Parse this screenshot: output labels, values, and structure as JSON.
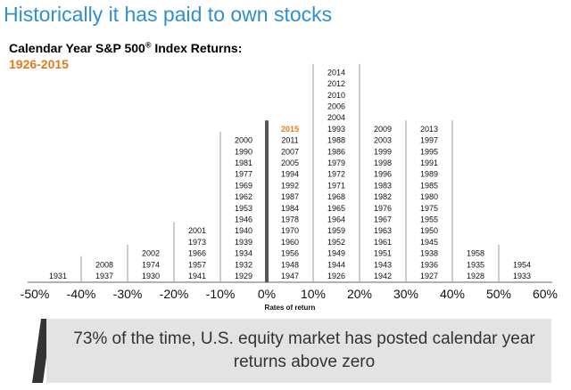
{
  "headline": "Historically it has paid to own stocks",
  "footer_text": "73% of the time, U.S. equity market has posted calendar year returns above zero",
  "chart_data": {
    "type": "histogram",
    "title": "Calendar Year S&P 500® Index Returns:",
    "subtitle": "1926-2015",
    "xlabel": "Rates of return",
    "ticks": [
      "-50%",
      "-40%",
      "-30%",
      "-20%",
      "-10%",
      "0%",
      "10%",
      "20%",
      "30%",
      "40%",
      "50%",
      "60%"
    ],
    "highlight_year": "2015",
    "highlight_color": "#e07b1a",
    "bins": [
      {
        "range": [
          -50,
          -40
        ],
        "years": [
          "1931"
        ]
      },
      {
        "range": [
          -40,
          -30
        ],
        "years": [
          "1937",
          "2008"
        ]
      },
      {
        "range": [
          -30,
          -20
        ],
        "years": [
          "1930",
          "1974",
          "2002"
        ]
      },
      {
        "range": [
          -20,
          -10
        ],
        "years": [
          "1941",
          "1957",
          "1966",
          "1973",
          "2001"
        ]
      },
      {
        "range": [
          -10,
          0
        ],
        "years": [
          "1929",
          "1932",
          "1934",
          "1939",
          "1940",
          "1946",
          "1953",
          "1962",
          "1969",
          "1977",
          "1981",
          "1990",
          "2000"
        ]
      },
      {
        "range": [
          0,
          10
        ],
        "years": [
          "1947",
          "1948",
          "1956",
          "1960",
          "1970",
          "1978",
          "1984",
          "1987",
          "1992",
          "1994",
          "2005",
          "2007",
          "2011",
          "2015"
        ]
      },
      {
        "range": [
          10,
          20
        ],
        "years": [
          "1926",
          "1944",
          "1949",
          "1952",
          "1959",
          "1964",
          "1965",
          "1968",
          "1971",
          "1972",
          "1979",
          "1986",
          "1988",
          "1993",
          "2004",
          "2006",
          "2010",
          "2012",
          "2014"
        ]
      },
      {
        "range": [
          20,
          30
        ],
        "years": [
          "1942",
          "1943",
          "1951",
          "1961",
          "1963",
          "1967",
          "1976",
          "1982",
          "1983",
          "1996",
          "1998",
          "1999",
          "2003",
          "2009"
        ]
      },
      {
        "range": [
          30,
          40
        ],
        "years": [
          "1927",
          "1936",
          "1938",
          "1945",
          "1950",
          "1955",
          "1975",
          "1980",
          "1985",
          "1989",
          "1991",
          "1995",
          "1997",
          "2013"
        ]
      },
      {
        "range": [
          40,
          50
        ],
        "years": [
          "1928",
          "1935",
          "1958"
        ]
      },
      {
        "range": [
          50,
          60
        ],
        "years": [
          "1933",
          "1954"
        ]
      }
    ]
  }
}
